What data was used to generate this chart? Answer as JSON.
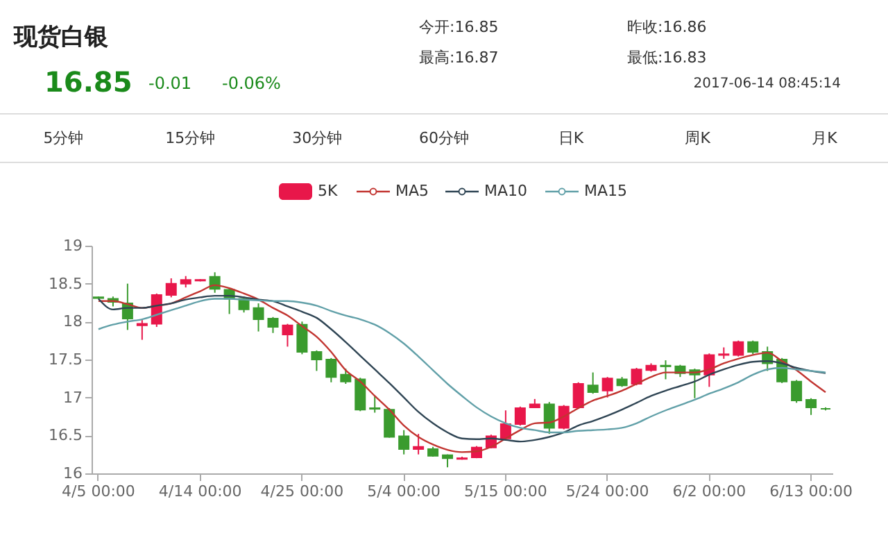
{
  "chart_data": {
    "type": "candlestick",
    "title": "现货白银",
    "annotations": [
      "16.85",
      "-0.01",
      "-0.06%",
      "今开:16.85",
      "最高:16.87",
      "昨收:16.86",
      "最低:16.83",
      "2017-06-14 08:45:14",
      "5分钟",
      "15分钟",
      "30分钟",
      "60分钟",
      "日K",
      "周K",
      "月K"
    ],
    "categories": [
      "4/5 00:00",
      null,
      null,
      null,
      null,
      null,
      null,
      "4/14 00:00",
      null,
      null,
      null,
      null,
      null,
      null,
      "4/25 00:00",
      null,
      null,
      null,
      null,
      null,
      null,
      "5/4 00:00",
      null,
      null,
      null,
      null,
      null,
      null,
      "5/15 00:00",
      null,
      null,
      null,
      null,
      null,
      null,
      "5/24 00:00",
      null,
      null,
      null,
      null,
      null,
      null,
      "6/2 00:00",
      null,
      null,
      null,
      null,
      null,
      null,
      "6/13 00:00",
      null
    ],
    "ylim": [
      16,
      19
    ],
    "yticks": [
      16,
      16.5,
      17,
      17.5,
      18,
      18.5,
      19
    ],
    "grid": false,
    "legend": "top",
    "marker": "none",
    "line_style": "solid",
    "series": [
      {
        "name": "5K",
        "color": "#e8174a",
        "ohlc": [
          [
            18.32,
            18.33,
            18.3,
            18.31
          ],
          [
            18.3,
            18.33,
            18.2,
            18.26
          ],
          [
            18.24,
            18.5,
            17.89,
            18.04
          ],
          [
            17.95,
            18.02,
            17.76,
            17.97
          ],
          [
            17.97,
            18.37,
            17.93,
            18.35
          ],
          [
            18.35,
            18.57,
            18.32,
            18.5
          ],
          [
            18.5,
            18.6,
            18.45,
            18.55
          ],
          [
            18.54,
            18.56,
            18.53,
            18.55
          ],
          [
            18.59,
            18.65,
            18.38,
            18.43
          ],
          [
            18.42,
            18.44,
            18.1,
            18.3
          ],
          [
            18.3,
            18.33,
            18.12,
            18.16
          ],
          [
            18.18,
            18.24,
            17.87,
            18.03
          ],
          [
            18.04,
            18.06,
            17.85,
            17.93
          ],
          [
            17.83,
            17.97,
            17.67,
            17.95
          ],
          [
            17.96,
            18.0,
            17.57,
            17.6
          ],
          [
            17.6,
            17.62,
            17.35,
            17.5
          ],
          [
            17.5,
            17.52,
            17.2,
            17.27
          ],
          [
            17.3,
            17.38,
            17.18,
            17.21
          ],
          [
            17.24,
            17.26,
            16.82,
            16.84
          ],
          [
            16.86,
            17.02,
            16.8,
            16.85
          ],
          [
            16.84,
            16.86,
            16.47,
            16.48
          ],
          [
            16.49,
            16.57,
            16.25,
            16.32
          ],
          [
            16.32,
            16.52,
            16.25,
            16.35
          ],
          [
            16.32,
            16.35,
            16.22,
            16.23
          ],
          [
            16.24,
            16.25,
            16.08,
            16.2
          ],
          [
            16.19,
            16.22,
            16.18,
            16.2
          ],
          [
            16.21,
            16.36,
            16.2,
            16.34
          ],
          [
            16.34,
            16.51,
            16.33,
            16.49
          ],
          [
            16.46,
            16.83,
            16.44,
            16.65
          ],
          [
            16.65,
            16.88,
            16.63,
            16.86
          ],
          [
            16.87,
            16.98,
            16.86,
            16.91
          ],
          [
            16.91,
            16.94,
            16.52,
            16.6
          ],
          [
            16.6,
            16.9,
            16.58,
            16.88
          ],
          [
            16.87,
            17.2,
            16.85,
            17.18
          ],
          [
            17.16,
            17.33,
            17.05,
            17.07
          ],
          [
            17.09,
            17.27,
            17.0,
            17.25
          ],
          [
            17.24,
            17.27,
            17.14,
            17.16
          ],
          [
            17.18,
            17.39,
            17.16,
            17.37
          ],
          [
            17.36,
            17.45,
            17.34,
            17.42
          ],
          [
            17.42,
            17.49,
            17.24,
            17.41
          ],
          [
            17.41,
            17.43,
            17.27,
            17.32
          ],
          [
            17.36,
            17.38,
            16.99,
            17.3
          ],
          [
            17.3,
            17.58,
            17.14,
            17.56
          ],
          [
            17.56,
            17.66,
            17.51,
            17.57
          ],
          [
            17.56,
            17.75,
            17.54,
            17.73
          ],
          [
            17.73,
            17.75,
            17.57,
            17.6
          ],
          [
            17.6,
            17.67,
            17.35,
            17.45
          ],
          [
            17.5,
            17.52,
            17.19,
            17.21
          ],
          [
            17.21,
            17.23,
            16.93,
            16.96
          ],
          [
            16.97,
            16.99,
            16.77,
            16.87
          ],
          [
            16.85,
            16.87,
            16.83,
            16.85
          ]
        ],
        "colors": [
          "#3a9b2e",
          "#3a9b2e",
          "#3a9b2e",
          "#e8174a",
          "#e8174a",
          "#e8174a",
          "#e8174a",
          "#e8174a",
          "#3a9b2e",
          "#3a9b2e",
          "#3a9b2e",
          "#3a9b2e",
          "#3a9b2e",
          "#e8174a",
          "#3a9b2e",
          "#3a9b2e",
          "#3a9b2e",
          "#3a9b2e",
          "#3a9b2e",
          "#3a9b2e",
          "#3a9b2e",
          "#3a9b2e",
          "#e8174a",
          "#3a9b2e",
          "#3a9b2e",
          "#e8174a",
          "#e8174a",
          "#e8174a",
          "#e8174a",
          "#e8174a",
          "#e8174a",
          "#3a9b2e",
          "#e8174a",
          "#e8174a",
          "#3a9b2e",
          "#e8174a",
          "#3a9b2e",
          "#e8174a",
          "#e8174a",
          "#3a9b2e",
          "#3a9b2e",
          "#3a9b2e",
          "#e8174a",
          "#e8174a",
          "#e8174a",
          "#3a9b2e",
          "#3a9b2e",
          "#3a9b2e",
          "#3a9b2e",
          "#3a9b2e",
          "#3a9b2e"
        ]
      },
      {
        "name": "MA5",
        "type": "line",
        "color": "#c23531",
        "values": [
          18.27,
          18.27,
          18.23,
          18.18,
          18.21,
          18.24,
          18.32,
          18.4,
          18.48,
          18.44,
          18.37,
          18.29,
          18.18,
          18.08,
          17.94,
          17.8,
          17.6,
          17.36,
          17.21,
          17.02,
          16.84,
          16.63,
          16.48,
          16.38,
          16.31,
          16.28,
          16.29,
          16.35,
          16.46,
          16.57,
          16.66,
          16.67,
          16.75,
          16.86,
          16.96,
          17.02,
          17.09,
          17.18,
          17.27,
          17.33,
          17.33,
          17.33,
          17.37,
          17.45,
          17.51,
          17.56,
          17.59,
          17.48,
          17.36,
          17.21,
          17.07
        ]
      },
      {
        "name": "MA10",
        "type": "line",
        "color": "#2f4554",
        "values": [
          18.3,
          18.16,
          18.18,
          18.18,
          18.21,
          18.24,
          18.29,
          18.32,
          18.34,
          18.34,
          18.32,
          18.29,
          18.27,
          18.2,
          18.13,
          18.05,
          17.9,
          17.73,
          17.55,
          17.37,
          17.19,
          17.0,
          16.81,
          16.66,
          16.54,
          16.46,
          16.45,
          16.46,
          16.44,
          16.42,
          16.44,
          16.48,
          16.54,
          16.63,
          16.69,
          16.76,
          16.84,
          16.93,
          17.02,
          17.09,
          17.15,
          17.21,
          17.3,
          17.37,
          17.43,
          17.47,
          17.48,
          17.45,
          17.39,
          17.35,
          17.32
        ]
      },
      {
        "name": "MA15",
        "type": "line",
        "color": "#61a0a8",
        "values": [
          17.9,
          17.96,
          18.0,
          18.03,
          18.09,
          18.15,
          18.21,
          18.27,
          18.3,
          18.3,
          18.29,
          18.28,
          18.27,
          18.27,
          18.25,
          18.21,
          18.14,
          18.08,
          18.03,
          17.96,
          17.85,
          17.71,
          17.54,
          17.36,
          17.18,
          17.02,
          16.87,
          16.75,
          16.66,
          16.6,
          16.57,
          16.54,
          16.54,
          16.56,
          16.57,
          16.58,
          16.6,
          16.66,
          16.75,
          16.83,
          16.9,
          16.97,
          17.05,
          17.12,
          17.2,
          17.3,
          17.37,
          17.39,
          17.37,
          17.35,
          17.33
        ]
      }
    ]
  }
}
